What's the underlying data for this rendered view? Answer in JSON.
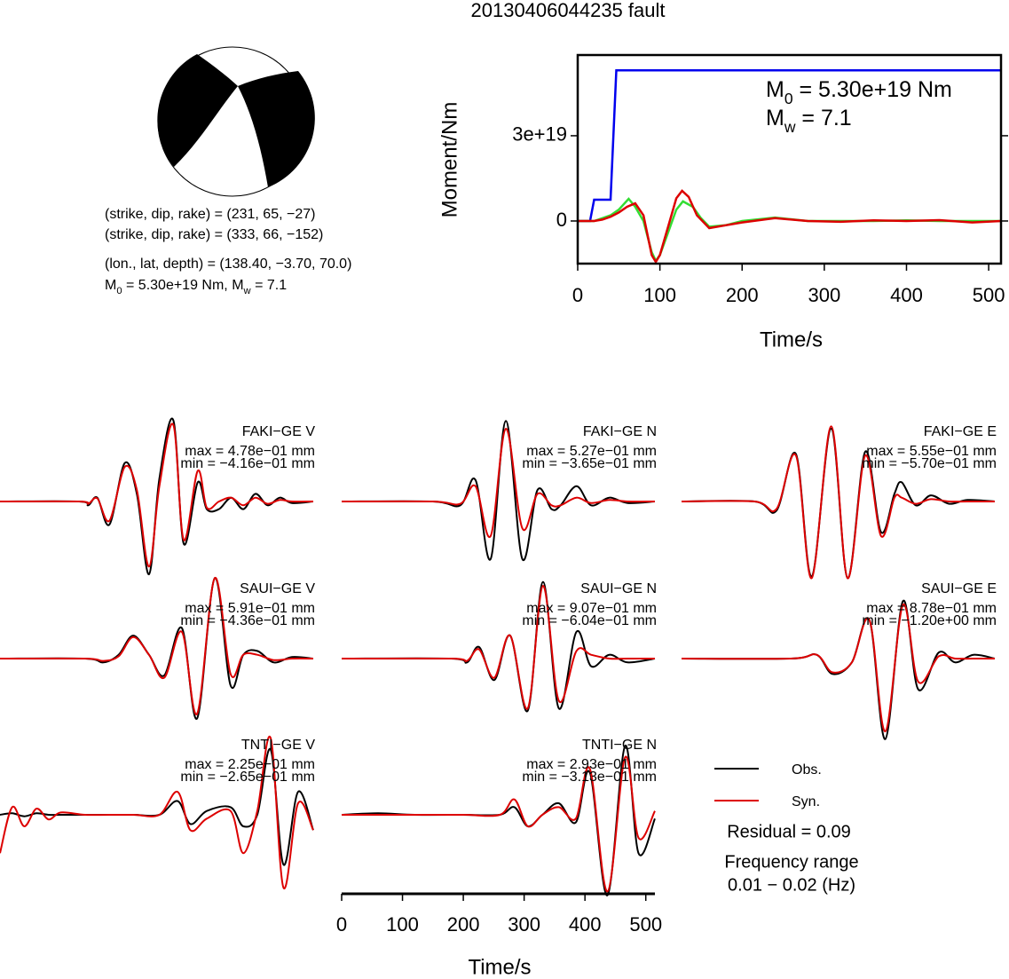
{
  "title": "20130406044235 fault",
  "mechanism": {
    "lines": [
      "(strike, dip, rake) = (231, 65, −27)",
      "(strike, dip, rake) = (333, 66, −152)",
      "(lon., lat, depth) = (138.40, −3.70, 70.0)"
    ],
    "moment_line": [
      "M",
      "0",
      " = 5.30e+19 Nm, M",
      "w",
      " = 7.1"
    ]
  },
  "chart_data": [
    {
      "type": "line",
      "xlabel": "Time/s",
      "ylabel": "Moment/Nm",
      "xlim": [
        0,
        515
      ],
      "ylim": [
        -1.5e+19,
        5.84e+19
      ],
      "xticks": [
        0,
        100,
        200,
        300,
        400,
        500
      ],
      "yticks": [
        0,
        {
          "value": 3e+19,
          "label": "3e+19"
        }
      ],
      "annotations": [
        [
          "M",
          "0",
          " = 5.30e+19 Nm"
        ],
        [
          "M",
          "w",
          " = 7.1"
        ]
      ],
      "series": [
        {
          "color": "#0000ee",
          "x": [
            0,
            15,
            20,
            40,
            47,
            515
          ],
          "values": [
            0,
            0,
            7.5e+18,
            7.5e+18,
            5.3e+19,
            5.3e+19
          ]
        },
        {
          "color": "#33dd33",
          "x": [
            0,
            20,
            30,
            40,
            50,
            62,
            70,
            80,
            90,
            95,
            100,
            110,
            120,
            128,
            140,
            150,
            160,
            180,
            200,
            240,
            280,
            320,
            360,
            400,
            440,
            480,
            515
          ],
          "values": [
            0,
            0,
            1e+18,
            2e+18,
            4e+18,
            7.8e+18,
            5e+18,
            0,
            -1.1e+19,
            -1.4e+19,
            -1.2e+19,
            -4e+18,
            4e+18,
            6.9e+18,
            5e+18,
            1e+18,
            -2e+18,
            -1.5e+18,
            0,
            1.2e+18,
            0,
            0,
            0,
            2e+17,
            0,
            0,
            0
          ]
        },
        {
          "color": "#dd0000",
          "x": [
            0,
            20,
            30,
            40,
            50,
            60,
            70,
            80,
            90,
            95,
            100,
            110,
            120,
            127,
            135,
            145,
            160,
            180,
            200,
            240,
            280,
            320,
            360,
            400,
            440,
            480,
            515
          ],
          "values": [
            0,
            0,
            5e+17,
            1.5e+18,
            3e+18,
            5e+18,
            6.2e+18,
            2e+18,
            -1.2e+19,
            -1.44e+19,
            -1.2e+19,
            -2e+18,
            8e+18,
            1.06e+19,
            8.5e+18,
            2e+18,
            -2.5e+18,
            -1.5e+18,
            -5e+17,
            1e+18,
            0,
            -3e+17,
            2e+17,
            0,
            3e+17,
            -5e+17,
            0
          ]
        }
      ]
    },
    {
      "type": "waveforms",
      "xlabel": "Time/s",
      "xlim": [
        0,
        515
      ],
      "xticks": [
        0,
        100,
        200,
        300,
        400,
        500
      ],
      "ylim": [
        -1.1,
        1.1
      ],
      "legend": [
        {
          "name": "Obs.",
          "color": "#000000"
        },
        {
          "name": "Syn.",
          "color": "#dd0000"
        }
      ],
      "residual": "Residual = 0.09",
      "frequency_title": "Frequency range",
      "frequency_range": "0.01 − 0.02 (Hz)",
      "panels": [
        {
          "station": "FAKI−GE V",
          "max_label": "max = 4.78e−01 mm",
          "min_label": "min = −4.16e−01 mm",
          "x": [
            0,
            130,
            145,
            160,
            180,
            205,
            225,
            245,
            262,
            285,
            302,
            325,
            340,
            360,
            380,
            400,
            420,
            440,
            460,
            480,
            515
          ],
          "series": [
            {
              "values": [
                0,
                0,
                -0.05,
                0.05,
                -0.3,
                0.5,
                0.1,
                -0.95,
                0.3,
                1.06,
                -0.55,
                0.25,
                -0.1,
                -0.1,
                0.05,
                -0.1,
                0.1,
                -0.05,
                0.05,
                -0.02,
                0
              ]
            },
            {
              "values": [
                0,
                0,
                -0.03,
                0.04,
                -0.25,
                0.45,
                0.15,
                -0.85,
                0.2,
                1.0,
                -0.5,
                0.4,
                -0.08,
                0,
                0.05,
                -0.05,
                0.05,
                -0.03,
                0.02,
                0,
                0
              ]
            }
          ]
        },
        {
          "station": "FAKI−GE N",
          "max_label": "max = 5.27e−01 mm",
          "min_label": "min = −3.65e−01 mm",
          "x": [
            0,
            150,
            195,
            220,
            245,
            270,
            297,
            322,
            345,
            360,
            386,
            410,
            440,
            470,
            515
          ],
          "series": [
            {
              "values": [
                0,
                0,
                -0.05,
                0.28,
                -0.75,
                1.05,
                -0.75,
                0.15,
                -0.1,
                -0.05,
                0.2,
                -0.05,
                0.05,
                -0.02,
                0
              ]
            },
            {
              "values": [
                0,
                0,
                -0.03,
                0.2,
                -0.45,
                0.95,
                -0.35,
                0.1,
                -0.05,
                -0.05,
                0.05,
                -0.02,
                0.02,
                0,
                0
              ]
            }
          ]
        },
        {
          "station": "FAKI−GE E",
          "max_label": "max = 5.55e−01 mm",
          "min_label": "min = −5.70e−01 mm",
          "x": [
            0,
            120,
            156,
            188,
            214,
            246,
            273,
            302,
            328,
            350,
            362,
            385,
            410,
            440,
            470,
            515
          ],
          "series": [
            {
              "values": [
                0,
                0,
                -0.12,
                0.62,
                -0.98,
                0.95,
                -1.0,
                0.65,
                -0.4,
                0.1,
                0.25,
                -0.05,
                0.08,
                -0.03,
                0.02,
                0
              ]
            },
            {
              "values": [
                0,
                0,
                -0.1,
                0.6,
                -1.0,
                0.98,
                -1.0,
                0.6,
                -0.45,
                0.05,
                0.05,
                -0.03,
                0.03,
                0,
                0,
                0
              ]
            }
          ]
        },
        {
          "station": "SAUI−GE V",
          "max_label": "max = 5.91e−01 mm",
          "min_label": "min = −4.36e−01 mm",
          "x": [
            0,
            140,
            170,
            195,
            219,
            245,
            270,
            299,
            324,
            353,
            379,
            400,
            423,
            450,
            480,
            515
          ],
          "series": [
            {
              "values": [
                0,
                0,
                -0.05,
                0.05,
                0.3,
                0.05,
                -0.22,
                0.4,
                -0.78,
                1.05,
                -0.35,
                0.05,
                0.1,
                -0.05,
                0.02,
                0
              ]
            },
            {
              "values": [
                0,
                0,
                -0.03,
                0.03,
                0.28,
                0.05,
                -0.25,
                0.35,
                -0.72,
                1.05,
                -0.2,
                0.05,
                0.05,
                -0.02,
                0,
                0
              ]
            }
          ]
        },
        {
          "station": "SAUI−GE N",
          "max_label": "max = 9.07e−01 mm",
          "min_label": "min = −6.04e−01 mm",
          "x": [
            0,
            180,
            206,
            226,
            251,
            277,
            306,
            331,
            357,
            386,
            410,
            440,
            470,
            515
          ],
          "series": [
            {
              "values": [
                0,
                0,
                -0.05,
                0.15,
                -0.28,
                0.3,
                -0.68,
                1.0,
                -0.65,
                0.35,
                -0.1,
                0.05,
                -0.05,
                0
              ]
            },
            {
              "values": [
                0,
                0,
                -0.03,
                0.12,
                -0.25,
                0.3,
                -0.65,
                0.95,
                -0.55,
                0.1,
                0.05,
                0,
                0,
                0
              ]
            }
          ]
        },
        {
          "station": "SAUI−GE E",
          "max_label": "max = 8.78e−01 mm",
          "min_label": "min = −1.20e+00 mm",
          "x": [
            0,
            180,
            222,
            248,
            280,
            309,
            335,
            364,
            389,
            423,
            450,
            480,
            515
          ],
          "series": [
            {
              "values": [
                0,
                0,
                0.05,
                -0.2,
                -0.05,
                0.5,
                -1.05,
                0.75,
                -0.4,
                0.08,
                -0.05,
                0.05,
                0
              ]
            },
            {
              "values": [
                0,
                0,
                0.05,
                -0.18,
                -0.05,
                0.5,
                -0.95,
                0.7,
                -0.3,
                0.03,
                0,
                0,
                0
              ]
            }
          ]
        },
        {
          "station": "TNTI−GE V",
          "max_label": "max = 2.25e−01 mm",
          "min_label": "min = −2.65e−01 mm",
          "x": [
            0,
            20,
            40,
            60,
            80,
            100,
            140,
            180,
            220,
            262,
            292,
            313,
            340,
            379,
            400,
            423,
            445,
            466,
            490,
            515
          ],
          "series": [
            {
              "values": [
                0,
                0.02,
                -0.02,
                0.02,
                0,
                0,
                0,
                0,
                0,
                0,
                0.18,
                -0.12,
                0.05,
                0.1,
                -0.15,
                0,
                0.85,
                -0.65,
                0.3,
                -0.2
              ]
            },
            {
              "values": [
                -0.5,
                0.1,
                -0.15,
                0.08,
                -0.06,
                0.03,
                0,
                0,
                0,
                0,
                0.3,
                -0.2,
                -0.05,
                0.05,
                -0.5,
                0.05,
                1.0,
                -0.95,
                0.15,
                -0.2
              ]
            }
          ]
        },
        {
          "station": "TNTI−GE N",
          "max_label": "max = 2.93e−01 mm",
          "min_label": "min = −3.13e−01 mm",
          "x": [
            0,
            60,
            120,
            200,
            260,
            284,
            306,
            330,
            357,
            385,
            408,
            437,
            466,
            488,
            515
          ],
          "series": [
            {
              "values": [
                0,
                0.02,
                0,
                0,
                0,
                0.1,
                -0.15,
                0,
                0.15,
                -0.1,
                0.55,
                -1.05,
                0.9,
                -0.5,
                -0.05
              ]
            },
            {
              "values": [
                0,
                0,
                0,
                0,
                0,
                0.2,
                -0.15,
                0,
                0.1,
                -0.05,
                0.6,
                -1.0,
                0.75,
                -0.3,
                0.05
              ]
            }
          ]
        }
      ]
    }
  ]
}
